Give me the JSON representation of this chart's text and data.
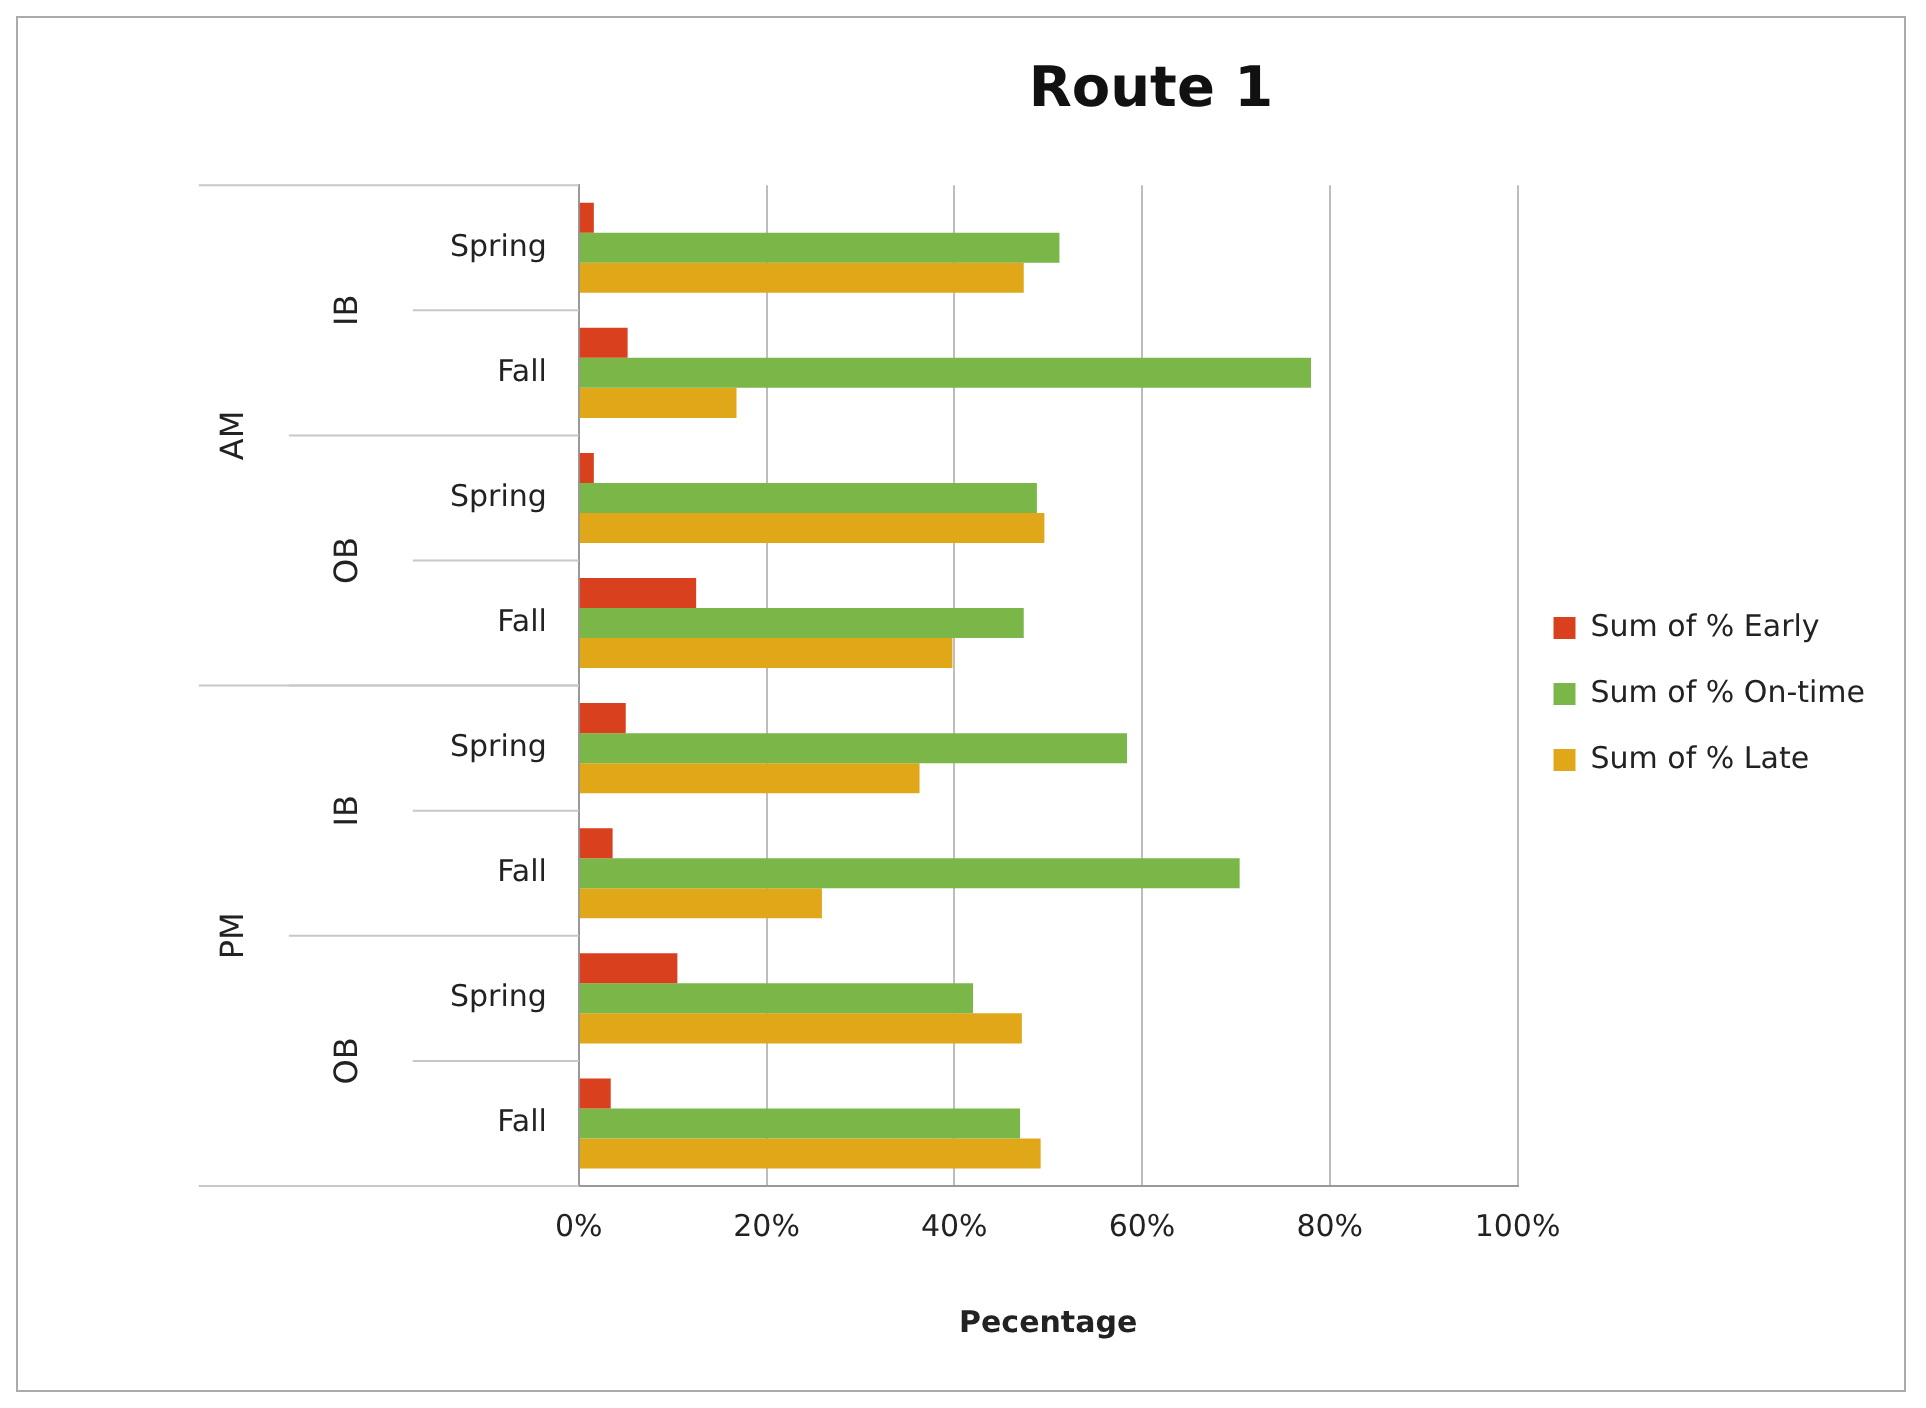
{
  "chart_data": {
    "type": "bar",
    "orientation": "horizontal",
    "title": "Route 1",
    "xlabel": "Pecentage",
    "categories": [
      "Spring",
      "Fall",
      "Spring",
      "Fall",
      "Spring",
      "Fall",
      "Spring",
      "Fall"
    ],
    "annotations": [
      "IB",
      "OB",
      "IB",
      "OB",
      "AM",
      "PM"
    ],
    "series": [
      {
        "name": "Sum of % Early",
        "color": "#d9401e",
        "values": [
          1.6,
          5.2,
          1.6,
          12.5,
          5,
          3.6,
          10.5,
          3.4
        ]
      },
      {
        "name": "Sum of % On-time",
        "color": "#7ab648",
        "values": [
          51.2,
          78,
          48.8,
          47.4,
          58.4,
          70.4,
          42,
          47
        ]
      },
      {
        "name": "Sum of % Late",
        "color": "#e0a818",
        "values": [
          47.4,
          16.8,
          49.6,
          39.8,
          36.3,
          25.9,
          47.2,
          49.2
        ]
      }
    ],
    "xlim": [
      0,
      100
    ],
    "xticks": [
      {
        "value": 0,
        "label": "0%"
      },
      {
        "value": 20,
        "label": "20%"
      },
      {
        "value": 40,
        "label": "40%"
      },
      {
        "value": 60,
        "label": "60%"
      },
      {
        "value": 80,
        "label": "80%"
      },
      {
        "value": 100,
        "label": "100%"
      }
    ],
    "grid": "x",
    "legend": "right"
  }
}
